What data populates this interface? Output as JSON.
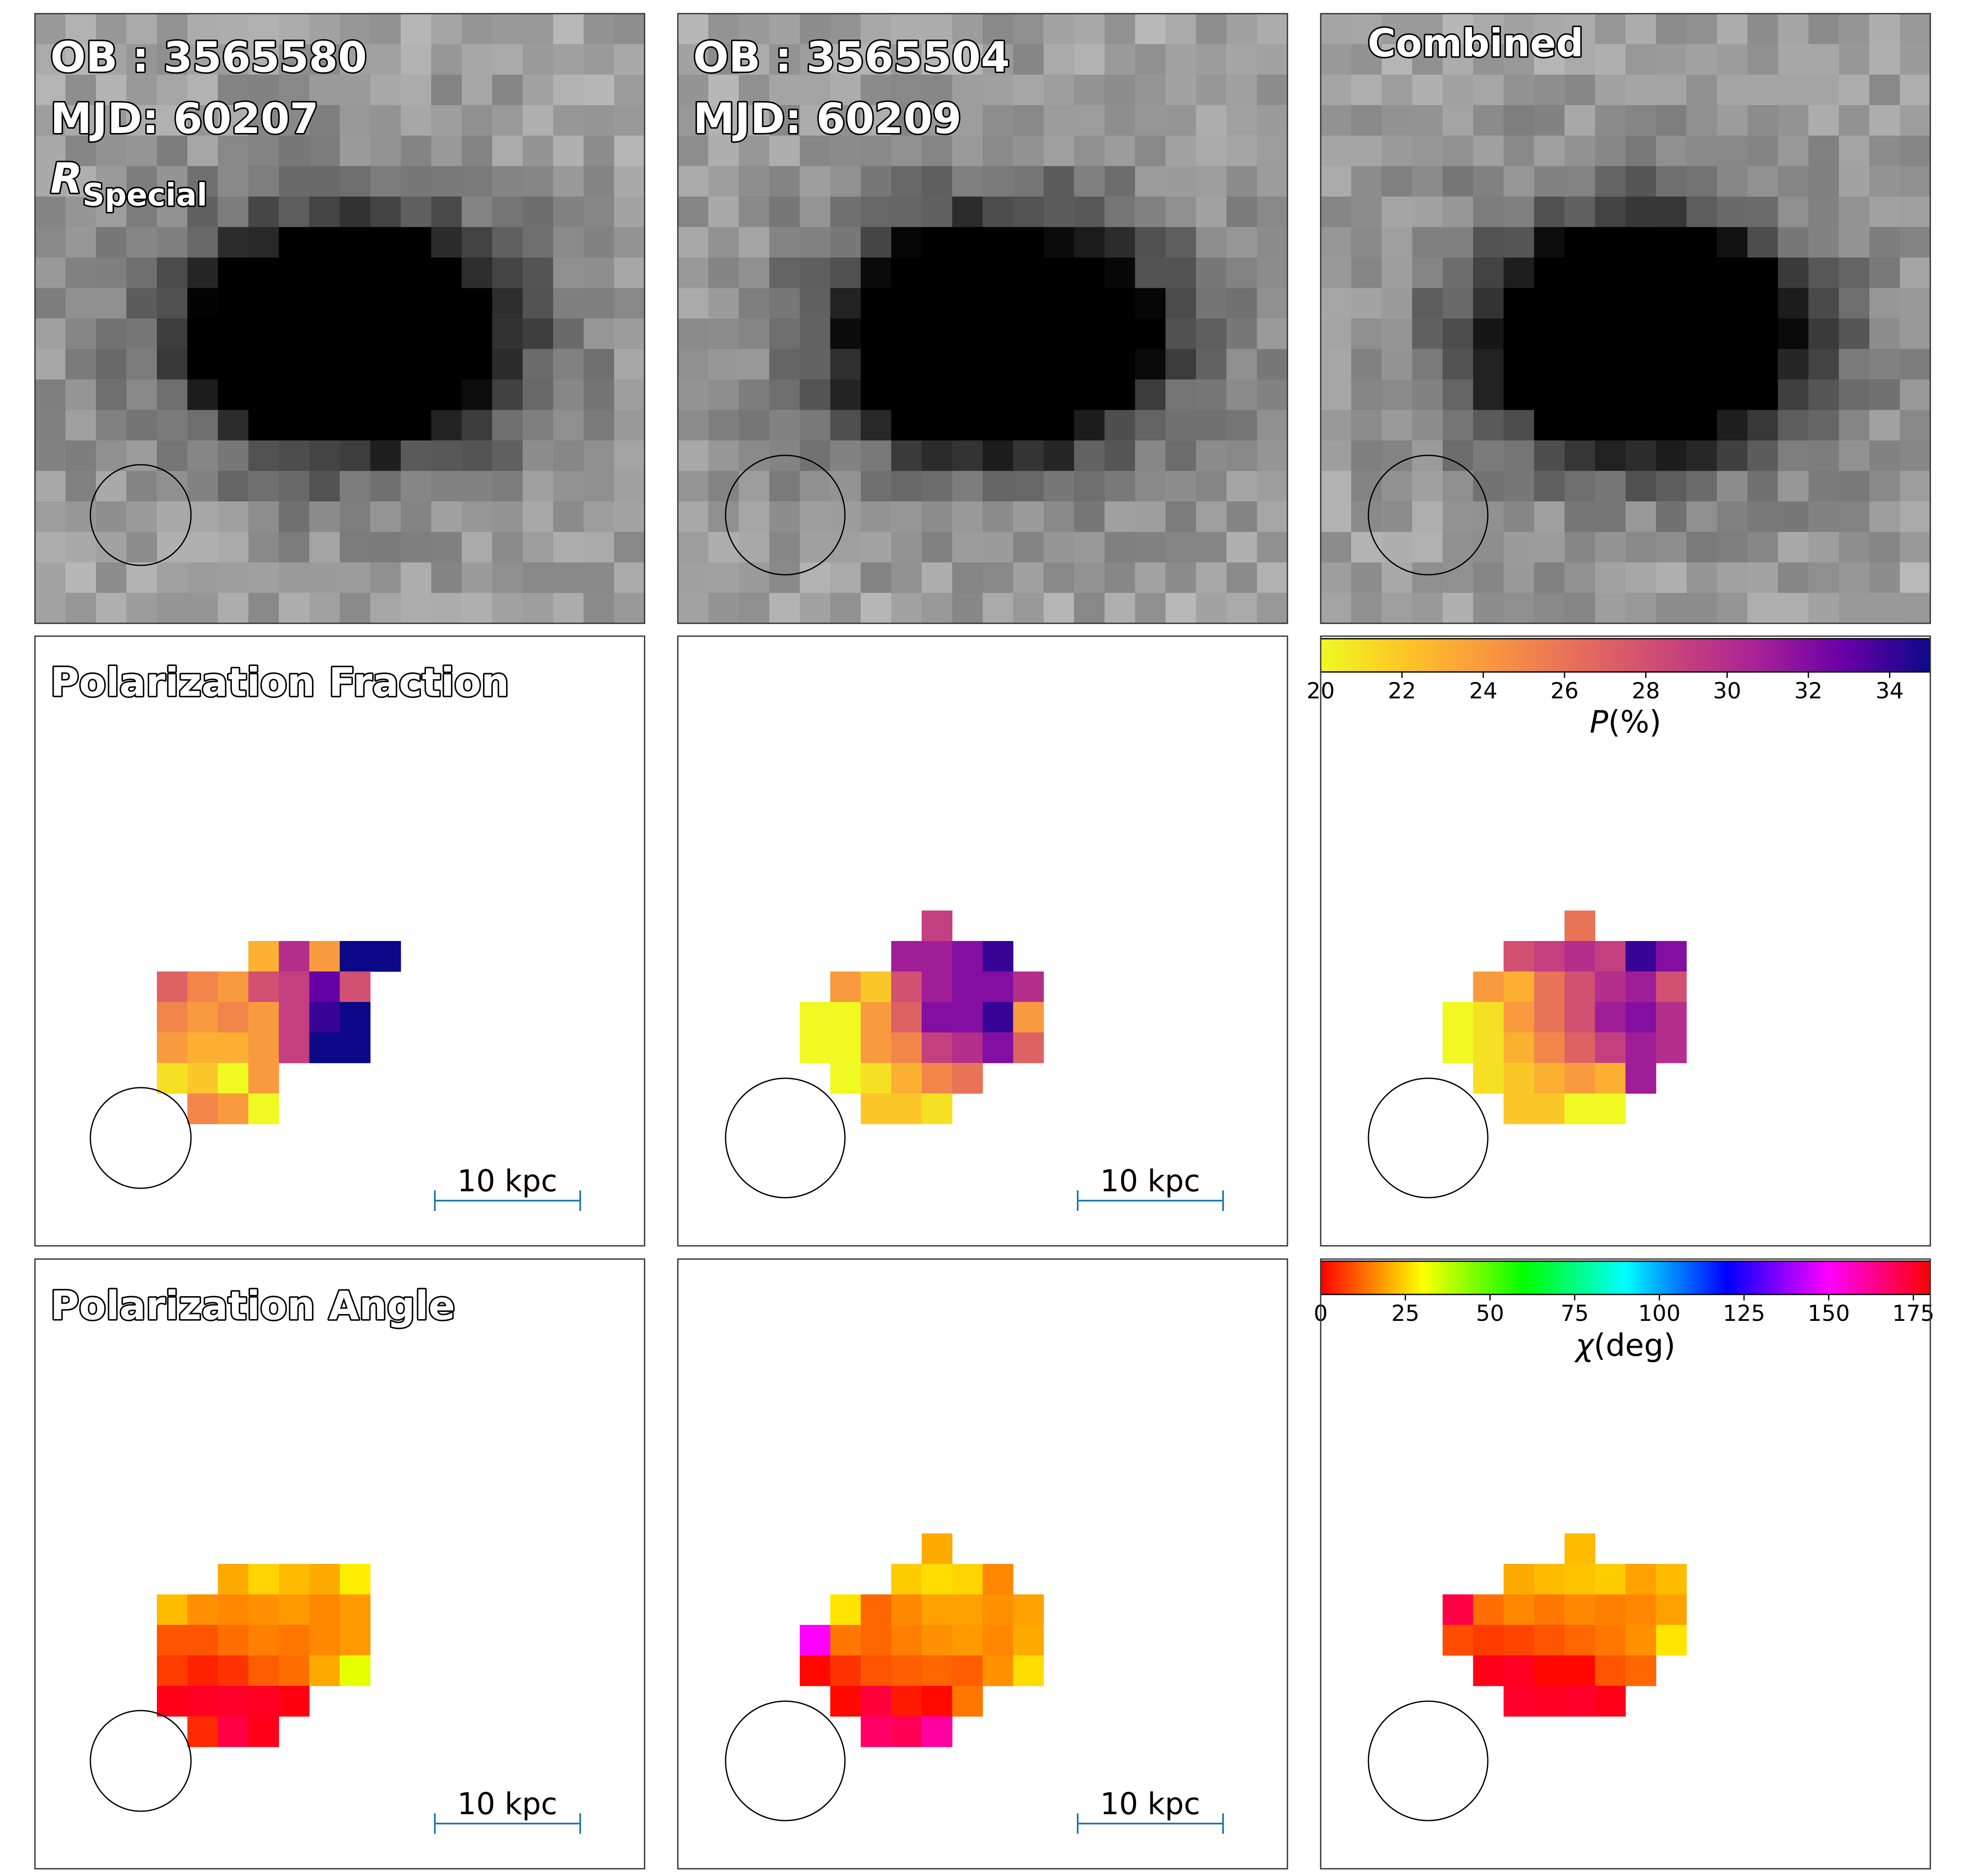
{
  "chart_data": [
    {
      "type": "heatmap",
      "row": "intensity",
      "columns": [
        {
          "label_lines": [
            "OB : 3565580",
            "MJD: 60207"
          ],
          "band_main": "R",
          "band_sub": "Special"
        },
        {
          "label_lines": [
            "OB : 3565504",
            "MJD: 60209"
          ]
        },
        {
          "label_lines": [
            "Combined"
          ]
        }
      ],
      "colormap": "grayscale (inverted, high intensity = black)",
      "beam_circle": "bottom-left"
    },
    {
      "type": "heatmap",
      "row": "polarization-fraction",
      "title": "Polarization Fraction",
      "colorbar": {
        "label_italic": "P",
        "label_rest": "(%)",
        "min": 20,
        "max": 35,
        "ticks": [
          "20",
          "22",
          "24",
          "26",
          "28",
          "30",
          "32",
          "34"
        ],
        "tick_values": [
          20,
          22,
          24,
          26,
          28,
          30,
          32,
          34
        ],
        "colormap": "plasma_r"
      },
      "scalebar_label": "10 kpc",
      "panels": [
        {
          "name": "OB 3565580",
          "pixels": [
            [
              7,
              10,
              23
            ],
            [
              8,
              10,
              30
            ],
            [
              9,
              10,
              24
            ],
            [
              10,
              10,
              35
            ],
            [
              11,
              10,
              35
            ],
            [
              4,
              11,
              27
            ],
            [
              5,
              11,
              25
            ],
            [
              6,
              11,
              24
            ],
            [
              7,
              11,
              28
            ],
            [
              8,
              11,
              29
            ],
            [
              9,
              11,
              33
            ],
            [
              10,
              11,
              28
            ],
            [
              4,
              12,
              25
            ],
            [
              5,
              12,
              24
            ],
            [
              6,
              12,
              25
            ],
            [
              7,
              12,
              24
            ],
            [
              8,
              12,
              29
            ],
            [
              9,
              12,
              34
            ],
            [
              10,
              12,
              35
            ],
            [
              4,
              13,
              24
            ],
            [
              5,
              13,
              23
            ],
            [
              6,
              13,
              23
            ],
            [
              7,
              13,
              24
            ],
            [
              8,
              13,
              29
            ],
            [
              9,
              13,
              35
            ],
            [
              10,
              13,
              35
            ],
            [
              4,
              14,
              21
            ],
            [
              5,
              14,
              22
            ],
            [
              6,
              14,
              20
            ],
            [
              7,
              14,
              24
            ],
            [
              5,
              15,
              25
            ],
            [
              6,
              15,
              24
            ],
            [
              7,
              15,
              20
            ]
          ]
        },
        {
          "name": "OB 3565504",
          "pixels": [
            [
              8,
              9,
              29
            ],
            [
              7,
              10,
              31
            ],
            [
              8,
              10,
              31
            ],
            [
              9,
              10,
              32
            ],
            [
              10,
              10,
              34
            ],
            [
              5,
              11,
              24
            ],
            [
              6,
              11,
              22
            ],
            [
              7,
              11,
              28
            ],
            [
              8,
              11,
              31
            ],
            [
              9,
              11,
              32
            ],
            [
              10,
              11,
              32
            ],
            [
              11,
              11,
              30
            ],
            [
              4,
              12,
              20
            ],
            [
              5,
              12,
              20
            ],
            [
              6,
              12,
              24
            ],
            [
              7,
              12,
              27
            ],
            [
              8,
              12,
              32
            ],
            [
              9,
              12,
              32
            ],
            [
              10,
              12,
              34
            ],
            [
              11,
              12,
              24
            ],
            [
              4,
              13,
              20
            ],
            [
              5,
              13,
              20
            ],
            [
              6,
              13,
              24
            ],
            [
              7,
              13,
              25
            ],
            [
              8,
              13,
              29
            ],
            [
              9,
              13,
              30
            ],
            [
              10,
              13,
              32
            ],
            [
              11,
              13,
              27
            ],
            [
              5,
              14,
              20
            ],
            [
              6,
              14,
              21
            ],
            [
              7,
              14,
              23
            ],
            [
              8,
              14,
              25
            ],
            [
              9,
              14,
              26
            ],
            [
              6,
              15,
              22
            ],
            [
              7,
              15,
              22
            ],
            [
              8,
              15,
              21
            ]
          ]
        },
        {
          "name": "Combined",
          "pixels": [
            [
              8,
              9,
              26
            ],
            [
              6,
              10,
              28
            ],
            [
              7,
              10,
              29
            ],
            [
              8,
              10,
              30
            ],
            [
              9,
              10,
              29
            ],
            [
              10,
              10,
              34
            ],
            [
              11,
              10,
              32
            ],
            [
              5,
              11,
              24
            ],
            [
              6,
              11,
              23
            ],
            [
              7,
              11,
              26
            ],
            [
              8,
              11,
              28
            ],
            [
              9,
              11,
              30
            ],
            [
              10,
              11,
              31
            ],
            [
              11,
              11,
              28
            ],
            [
              4,
              12,
              20
            ],
            [
              5,
              12,
              21
            ],
            [
              6,
              12,
              24
            ],
            [
              7,
              12,
              26
            ],
            [
              8,
              12,
              28
            ],
            [
              9,
              12,
              31
            ],
            [
              10,
              12,
              32
            ],
            [
              11,
              12,
              30
            ],
            [
              4,
              13,
              20
            ],
            [
              5,
              13,
              21
            ],
            [
              6,
              13,
              23
            ],
            [
              7,
              13,
              25
            ],
            [
              8,
              13,
              27
            ],
            [
              9,
              13,
              29
            ],
            [
              10,
              13,
              31
            ],
            [
              11,
              13,
              30
            ],
            [
              5,
              14,
              21
            ],
            [
              6,
              14,
              22
            ],
            [
              7,
              14,
              23
            ],
            [
              8,
              14,
              24
            ],
            [
              9,
              14,
              23
            ],
            [
              10,
              14,
              31
            ],
            [
              6,
              15,
              22
            ],
            [
              7,
              15,
              22
            ],
            [
              8,
              15,
              20
            ],
            [
              9,
              15,
              20
            ]
          ]
        }
      ]
    },
    {
      "type": "heatmap",
      "row": "polarization-angle",
      "title": "Polarization Angle",
      "colorbar": {
        "label_italic": "χ",
        "label_rest": "(deg)",
        "min": 0,
        "max": 180,
        "ticks": [
          "0",
          "25",
          "50",
          "75",
          "100",
          "125",
          "150",
          "175"
        ],
        "tick_values": [
          0,
          25,
          50,
          75,
          100,
          125,
          150,
          175
        ],
        "colormap": "hsv"
      },
      "scalebar_label": "10 kpc",
      "panels": [
        {
          "name": "OB 3565580",
          "pixels": [
            [
              6,
              10,
              20
            ],
            [
              7,
              10,
              25
            ],
            [
              8,
              10,
              22
            ],
            [
              9,
              10,
              20
            ],
            [
              10,
              10,
              28
            ],
            [
              4,
              11,
              22
            ],
            [
              5,
              11,
              17
            ],
            [
              6,
              11,
              16
            ],
            [
              7,
              11,
              17
            ],
            [
              8,
              11,
              18
            ],
            [
              9,
              11,
              16
            ],
            [
              10,
              11,
              18
            ],
            [
              4,
              12,
              10
            ],
            [
              5,
              12,
              10
            ],
            [
              6,
              12,
              13
            ],
            [
              7,
              12,
              15
            ],
            [
              8,
              12,
              14
            ],
            [
              9,
              12,
              16
            ],
            [
              10,
              12,
              18
            ],
            [
              4,
              13,
              7
            ],
            [
              5,
              13,
              4
            ],
            [
              6,
              13,
              6
            ],
            [
              7,
              13,
              11
            ],
            [
              8,
              13,
              13
            ],
            [
              9,
              13,
              20
            ],
            [
              10,
              13,
              33
            ],
            [
              4,
              14,
              177
            ],
            [
              5,
              14,
              176
            ],
            [
              6,
              14,
              175
            ],
            [
              7,
              14,
              176
            ],
            [
              8,
              14,
              178
            ],
            [
              5,
              15,
              5
            ],
            [
              6,
              15,
              172
            ],
            [
              7,
              15,
              177
            ]
          ]
        },
        {
          "name": "OB 3565504",
          "pixels": [
            [
              8,
              9,
              20
            ],
            [
              7,
              10,
              24
            ],
            [
              8,
              10,
              26
            ],
            [
              9,
              10,
              25
            ],
            [
              10,
              10,
              16
            ],
            [
              5,
              11,
              27
            ],
            [
              6,
              11,
              12
            ],
            [
              7,
              11,
              16
            ],
            [
              8,
              11,
              19
            ],
            [
              9,
              11,
              19
            ],
            [
              10,
              11,
              17
            ],
            [
              11,
              11,
              19
            ],
            [
              4,
              12,
              150
            ],
            [
              5,
              12,
              14
            ],
            [
              6,
              12,
              12
            ],
            [
              7,
              12,
              15
            ],
            [
              8,
              12,
              17
            ],
            [
              9,
              12,
              18
            ],
            [
              10,
              12,
              16
            ],
            [
              11,
              12,
              20
            ],
            [
              4,
              13,
              1
            ],
            [
              5,
              13,
              6
            ],
            [
              6,
              13,
              10
            ],
            [
              7,
              13,
              11
            ],
            [
              8,
              13,
              12
            ],
            [
              9,
              13,
              11
            ],
            [
              10,
              13,
              17
            ],
            [
              11,
              13,
              26
            ],
            [
              5,
              14,
              1
            ],
            [
              6,
              14,
              173
            ],
            [
              7,
              14,
              3
            ],
            [
              8,
              14,
              1
            ],
            [
              9,
              14,
              14
            ],
            [
              6,
              15,
              168
            ],
            [
              7,
              15,
              170
            ],
            [
              8,
              15,
              161
            ]
          ]
        },
        {
          "name": "Combined",
          "pixels": [
            [
              8,
              9,
              22
            ],
            [
              6,
              10,
              20
            ],
            [
              7,
              10,
              22
            ],
            [
              8,
              10,
              23
            ],
            [
              9,
              10,
              24
            ],
            [
              10,
              10,
              19
            ],
            [
              11,
              10,
              22
            ],
            [
              4,
              11,
              172
            ],
            [
              5,
              11,
              13
            ],
            [
              6,
              11,
              16
            ],
            [
              7,
              11,
              14
            ],
            [
              8,
              11,
              16
            ],
            [
              9,
              11,
              15
            ],
            [
              10,
              11,
              16
            ],
            [
              11,
              11,
              19
            ],
            [
              4,
              12,
              9
            ],
            [
              5,
              12,
              7
            ],
            [
              6,
              12,
              8
            ],
            [
              7,
              12,
              10
            ],
            [
              8,
              12,
              12
            ],
            [
              9,
              12,
              14
            ],
            [
              10,
              12,
              17
            ],
            [
              11,
              12,
              27
            ],
            [
              5,
              13,
              177
            ],
            [
              6,
              13,
              176
            ],
            [
              7,
              13,
              1
            ],
            [
              8,
              13,
              1
            ],
            [
              9,
              13,
              10
            ],
            [
              10,
              13,
              12
            ],
            [
              6,
              14,
              175
            ],
            [
              7,
              14,
              176
            ],
            [
              8,
              14,
              175
            ],
            [
              9,
              14,
              177
            ]
          ]
        }
      ]
    }
  ]
}
